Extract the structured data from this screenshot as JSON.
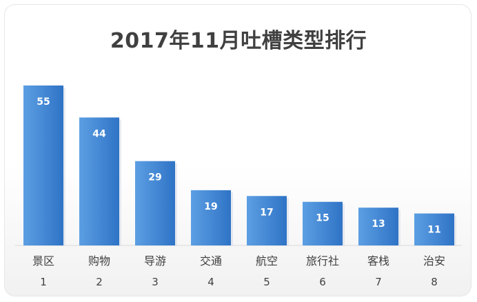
{
  "chart_data": {
    "type": "bar",
    "title": "2017年11月吐槽类型排行",
    "categories": [
      "景区",
      "购物",
      "导游",
      "交通",
      "航空",
      "旅行社",
      "客栈",
      "治安"
    ],
    "ranks": [
      "1",
      "2",
      "3",
      "4",
      "5",
      "6",
      "7",
      "8"
    ],
    "values": [
      55,
      44,
      29,
      19,
      17,
      15,
      13,
      11
    ],
    "ylim": [
      0,
      55
    ],
    "grid": false,
    "bar_color": "#4a8fd8",
    "bar_color_dark": "#2f6fba",
    "label_color": "#ffffff",
    "axis_text_color": "#404040"
  }
}
